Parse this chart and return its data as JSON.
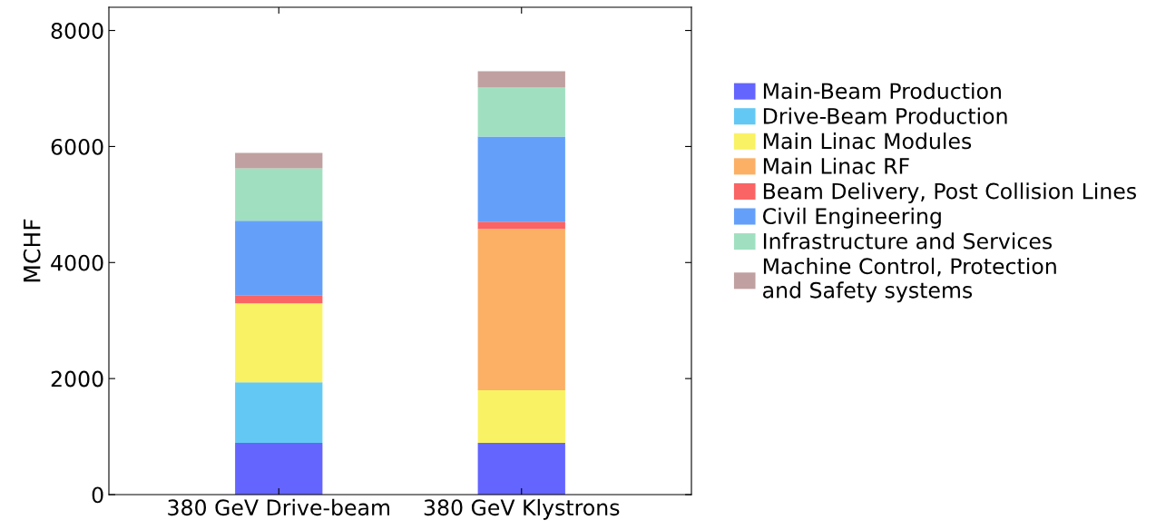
{
  "chart_data": {
    "type": "bar",
    "stacked": true,
    "ylabel": "MCHF",
    "categories": [
      "380 GeV Drive-beam",
      "380 GeV Klystrons"
    ],
    "series": [
      {
        "name": "Main-Beam Production",
        "color": "#6464ff",
        "values": [
          890,
          890
        ]
      },
      {
        "name": "Drive-Beam Production",
        "color": "#64c8f5",
        "values": [
          1047,
          0
        ]
      },
      {
        "name": "Main Linac Modules",
        "color": "#f9f264",
        "values": [
          1360,
          907
        ]
      },
      {
        "name": "Main Linac RF",
        "color": "#fbb066",
        "values": [
          0,
          2781
        ]
      },
      {
        "name": "Beam Delivery, Post Collision Lines",
        "color": "#fa6464",
        "values": [
          140,
          125
        ]
      },
      {
        "name": "Civil Engineering",
        "color": "#64a0fa",
        "values": [
          1282,
          1469
        ]
      },
      {
        "name": "Infrastructure and Services",
        "color": "#a0e0c0",
        "values": [
          906,
          844
        ]
      },
      {
        "name": "Machine Control, Protection\nand Safety systems",
        "color": "#c0a0a0",
        "values": [
          265,
          281
        ]
      }
    ],
    "ylim": [
      0,
      8400
    ],
    "yticks": [
      0,
      2000,
      4000,
      6000,
      8000
    ],
    "grid": false,
    "legend": "right"
  }
}
